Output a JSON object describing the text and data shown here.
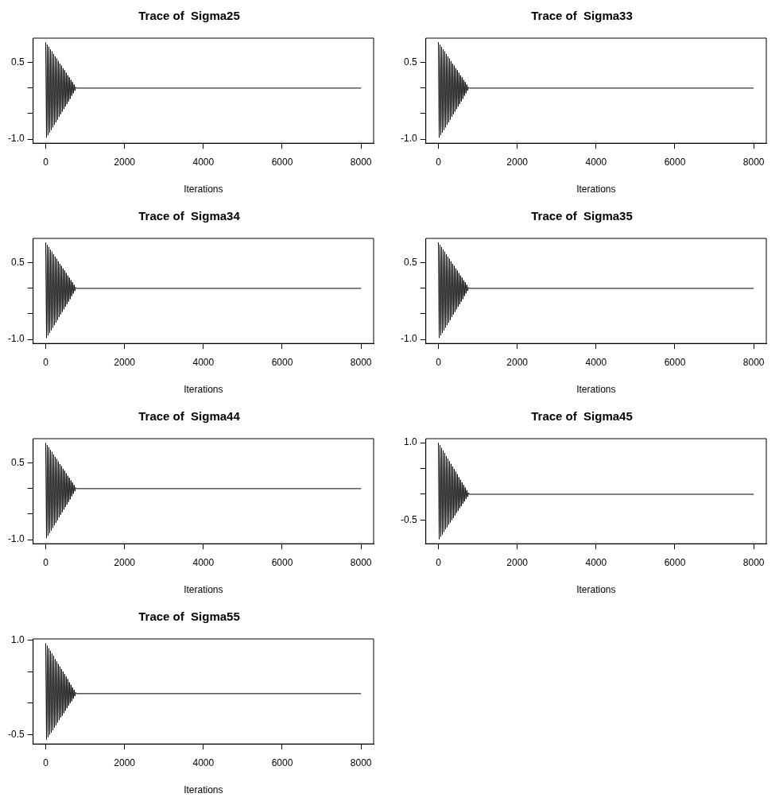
{
  "chart_data": [
    {
      "type": "line",
      "title": "Trace of  Sigma25",
      "xlabel": "Iterations",
      "color": "#000000",
      "marker": "none",
      "line_style": "solid",
      "grid": false,
      "legend": false,
      "xlim": [
        -320,
        8320
      ],
      "xticks": [
        0,
        2000,
        4000,
        6000,
        8000
      ],
      "ylim": [
        -1.08,
        0.98
      ],
      "yticks": [
        {
          "value": -1,
          "label": "-1.0"
        },
        {
          "value": -0.5,
          "label": null
        },
        {
          "value": 0,
          "label": null
        },
        {
          "value": 0.5,
          "label": "0.5"
        }
      ],
      "x": [
        0,
        20,
        40,
        60,
        80,
        100,
        120,
        140,
        160,
        180,
        200,
        220,
        240,
        260,
        280,
        300,
        320,
        340,
        360,
        380,
        400,
        420,
        440,
        460,
        480,
        500,
        520,
        540,
        560,
        580,
        600,
        620,
        640,
        660,
        680,
        700,
        720,
        740,
        760,
        780,
        8000
      ],
      "values": [
        0.9,
        -0.97,
        0.85,
        -0.92,
        0.81,
        -0.87,
        0.76,
        -0.82,
        0.72,
        -0.77,
        0.67,
        -0.72,
        0.62,
        -0.67,
        0.58,
        -0.62,
        0.53,
        -0.56,
        0.48,
        -0.51,
        0.44,
        -0.46,
        0.39,
        -0.41,
        0.35,
        -0.36,
        0.3,
        -0.31,
        0.25,
        -0.26,
        0.21,
        -0.21,
        0.16,
        -0.15,
        0.12,
        -0.1,
        0.07,
        -0.05,
        0.02,
        0,
        0
      ]
    },
    {
      "type": "line",
      "title": "Trace of  Sigma33",
      "xlabel": "Iterations",
      "color": "#000000",
      "marker": "none",
      "line_style": "solid",
      "grid": false,
      "legend": false,
      "xlim": [
        -320,
        8320
      ],
      "xticks": [
        0,
        2000,
        4000,
        6000,
        8000
      ],
      "ylim": [
        -1.08,
        0.98
      ],
      "yticks": [
        {
          "value": -1,
          "label": "-1.0"
        },
        {
          "value": -0.5,
          "label": null
        },
        {
          "value": 0,
          "label": null
        },
        {
          "value": 0.5,
          "label": "0.5"
        }
      ],
      "x": [
        0,
        20,
        40,
        60,
        80,
        100,
        120,
        140,
        160,
        180,
        200,
        220,
        240,
        260,
        280,
        300,
        320,
        340,
        360,
        380,
        400,
        420,
        440,
        460,
        480,
        500,
        520,
        540,
        560,
        580,
        600,
        620,
        640,
        660,
        680,
        700,
        720,
        740,
        760,
        780,
        8000
      ],
      "values": [
        0.9,
        -0.97,
        0.85,
        -0.92,
        0.81,
        -0.87,
        0.76,
        -0.82,
        0.72,
        -0.77,
        0.67,
        -0.72,
        0.62,
        -0.67,
        0.58,
        -0.62,
        0.53,
        -0.56,
        0.48,
        -0.51,
        0.44,
        -0.46,
        0.39,
        -0.41,
        0.35,
        -0.36,
        0.3,
        -0.31,
        0.25,
        -0.26,
        0.21,
        -0.21,
        0.16,
        -0.15,
        0.12,
        -0.1,
        0.07,
        -0.05,
        0.02,
        0,
        0
      ]
    },
    {
      "type": "line",
      "title": "Trace of  Sigma34",
      "xlabel": "Iterations",
      "color": "#000000",
      "marker": "none",
      "line_style": "solid",
      "grid": false,
      "legend": false,
      "xlim": [
        -320,
        8320
      ],
      "xticks": [
        0,
        2000,
        4000,
        6000,
        8000
      ],
      "ylim": [
        -1.08,
        0.98
      ],
      "yticks": [
        {
          "value": -1,
          "label": "-1.0"
        },
        {
          "value": -0.5,
          "label": null
        },
        {
          "value": 0,
          "label": null
        },
        {
          "value": 0.5,
          "label": "0.5"
        }
      ],
      "x": [
        0,
        20,
        40,
        60,
        80,
        100,
        120,
        140,
        160,
        180,
        200,
        220,
        240,
        260,
        280,
        300,
        320,
        340,
        360,
        380,
        400,
        420,
        440,
        460,
        480,
        500,
        520,
        540,
        560,
        580,
        600,
        620,
        640,
        660,
        680,
        700,
        720,
        740,
        760,
        780,
        8000
      ],
      "values": [
        0.9,
        -0.97,
        0.85,
        -0.92,
        0.81,
        -0.87,
        0.76,
        -0.82,
        0.72,
        -0.77,
        0.67,
        -0.72,
        0.62,
        -0.67,
        0.58,
        -0.62,
        0.53,
        -0.56,
        0.48,
        -0.51,
        0.44,
        -0.46,
        0.39,
        -0.41,
        0.35,
        -0.36,
        0.3,
        -0.31,
        0.25,
        -0.26,
        0.21,
        -0.21,
        0.16,
        -0.15,
        0.12,
        -0.1,
        0.07,
        -0.05,
        0.02,
        0,
        0
      ]
    },
    {
      "type": "line",
      "title": "Trace of  Sigma35",
      "xlabel": "Iterations",
      "color": "#000000",
      "marker": "none",
      "line_style": "solid",
      "grid": false,
      "legend": false,
      "xlim": [
        -320,
        8320
      ],
      "xticks": [
        0,
        2000,
        4000,
        6000,
        8000
      ],
      "ylim": [
        -1.08,
        0.98
      ],
      "yticks": [
        {
          "value": -1,
          "label": "-1.0"
        },
        {
          "value": -0.5,
          "label": null
        },
        {
          "value": 0,
          "label": null
        },
        {
          "value": 0.5,
          "label": "0.5"
        }
      ],
      "x": [
        0,
        20,
        40,
        60,
        80,
        100,
        120,
        140,
        160,
        180,
        200,
        220,
        240,
        260,
        280,
        300,
        320,
        340,
        360,
        380,
        400,
        420,
        440,
        460,
        480,
        500,
        520,
        540,
        560,
        580,
        600,
        620,
        640,
        660,
        680,
        700,
        720,
        740,
        760,
        780,
        8000
      ],
      "values": [
        0.9,
        -0.97,
        0.85,
        -0.92,
        0.81,
        -0.87,
        0.76,
        -0.82,
        0.72,
        -0.77,
        0.67,
        -0.72,
        0.62,
        -0.67,
        0.58,
        -0.62,
        0.53,
        -0.56,
        0.48,
        -0.51,
        0.44,
        -0.46,
        0.39,
        -0.41,
        0.35,
        -0.36,
        0.3,
        -0.31,
        0.25,
        -0.26,
        0.21,
        -0.21,
        0.16,
        -0.15,
        0.12,
        -0.1,
        0.07,
        -0.05,
        0.02,
        0,
        0
      ]
    },
    {
      "type": "line",
      "title": "Trace of  Sigma44",
      "xlabel": "Iterations",
      "color": "#000000",
      "marker": "none",
      "line_style": "solid",
      "grid": false,
      "legend": false,
      "xlim": [
        -320,
        8320
      ],
      "xticks": [
        0,
        2000,
        4000,
        6000,
        8000
      ],
      "ylim": [
        -1.08,
        0.98
      ],
      "yticks": [
        {
          "value": -1,
          "label": "-1.0"
        },
        {
          "value": -0.5,
          "label": null
        },
        {
          "value": 0,
          "label": null
        },
        {
          "value": 0.5,
          "label": "0.5"
        }
      ],
      "x": [
        0,
        20,
        40,
        60,
        80,
        100,
        120,
        140,
        160,
        180,
        200,
        220,
        240,
        260,
        280,
        300,
        320,
        340,
        360,
        380,
        400,
        420,
        440,
        460,
        480,
        500,
        520,
        540,
        560,
        580,
        600,
        620,
        640,
        660,
        680,
        700,
        720,
        740,
        760,
        780,
        8000
      ],
      "values": [
        0.9,
        -0.97,
        0.85,
        -0.92,
        0.81,
        -0.87,
        0.76,
        -0.82,
        0.72,
        -0.77,
        0.67,
        -0.72,
        0.62,
        -0.67,
        0.58,
        -0.62,
        0.53,
        -0.56,
        0.48,
        -0.51,
        0.44,
        -0.46,
        0.39,
        -0.41,
        0.35,
        -0.36,
        0.3,
        -0.31,
        0.25,
        -0.26,
        0.21,
        -0.21,
        0.16,
        -0.15,
        0.12,
        -0.1,
        0.07,
        -0.05,
        0.02,
        0,
        0
      ]
    },
    {
      "type": "line",
      "title": "Trace of  Sigma45",
      "xlabel": "Iterations",
      "color": "#000000",
      "marker": "none",
      "line_style": "solid",
      "grid": false,
      "legend": false,
      "xlim": [
        -320,
        8320
      ],
      "xticks": [
        0,
        2000,
        4000,
        6000,
        8000
      ],
      "ylim": [
        -0.96,
        1.08
      ],
      "yticks": [
        {
          "value": -0.5,
          "label": "-0.5"
        },
        {
          "value": 0,
          "label": null
        },
        {
          "value": 0.5,
          "label": null
        },
        {
          "value": 1,
          "label": "1.0"
        }
      ],
      "x": [
        0,
        20,
        40,
        60,
        80,
        100,
        120,
        140,
        160,
        180,
        200,
        220,
        240,
        260,
        280,
        300,
        320,
        340,
        360,
        380,
        400,
        420,
        440,
        460,
        480,
        500,
        520,
        540,
        560,
        580,
        600,
        620,
        640,
        660,
        680,
        700,
        720,
        740,
        760,
        780,
        8000
      ],
      "values": [
        1,
        -0.87,
        0.95,
        -0.82,
        0.9,
        -0.78,
        0.85,
        -0.73,
        0.8,
        -0.68,
        0.74,
        -0.64,
        0.69,
        -0.59,
        0.64,
        -0.55,
        0.59,
        -0.5,
        0.54,
        -0.46,
        0.49,
        -0.41,
        0.44,
        -0.36,
        0.39,
        -0.32,
        0.33,
        -0.27,
        0.28,
        -0.23,
        0.23,
        -0.18,
        0.18,
        -0.14,
        0.13,
        -0.09,
        0.08,
        -0.05,
        0.03,
        0,
        0
      ]
    },
    {
      "type": "line",
      "title": "Trace of  Sigma55",
      "xlabel": "Iterations",
      "color": "#000000",
      "marker": "none",
      "line_style": "solid",
      "grid": false,
      "legend": false,
      "xlim": [
        -320,
        8320
      ],
      "xticks": [
        0,
        2000,
        4000,
        6000,
        8000
      ],
      "ylim": [
        -0.65,
        1.02
      ],
      "yticks": [
        {
          "value": -0.5,
          "label": "-0.5"
        },
        {
          "value": 0,
          "label": null
        },
        {
          "value": 0.5,
          "label": null
        },
        {
          "value": 1,
          "label": "1.0"
        }
      ],
      "x": [
        0,
        20,
        40,
        60,
        80,
        100,
        120,
        140,
        160,
        180,
        200,
        220,
        240,
        260,
        280,
        300,
        320,
        340,
        360,
        380,
        400,
        420,
        440,
        460,
        480,
        500,
        520,
        540,
        560,
        580,
        600,
        620,
        640,
        660,
        680,
        700,
        720,
        740,
        760,
        780,
        8000
      ],
      "values": [
        0.95,
        -0.58,
        0.91,
        -0.54,
        0.87,
        -0.5,
        0.83,
        -0.47,
        0.79,
        -0.43,
        0.75,
        -0.39,
        0.7,
        -0.35,
        0.66,
        -0.31,
        0.62,
        -0.27,
        0.58,
        -0.23,
        0.54,
        -0.2,
        0.5,
        -0.16,
        0.46,
        -0.12,
        0.42,
        -0.08,
        0.38,
        -0.04,
        0.33,
        0,
        0.29,
        0.03,
        0.25,
        0.07,
        0.21,
        0.11,
        0.17,
        0.15,
        0.15
      ]
    }
  ]
}
